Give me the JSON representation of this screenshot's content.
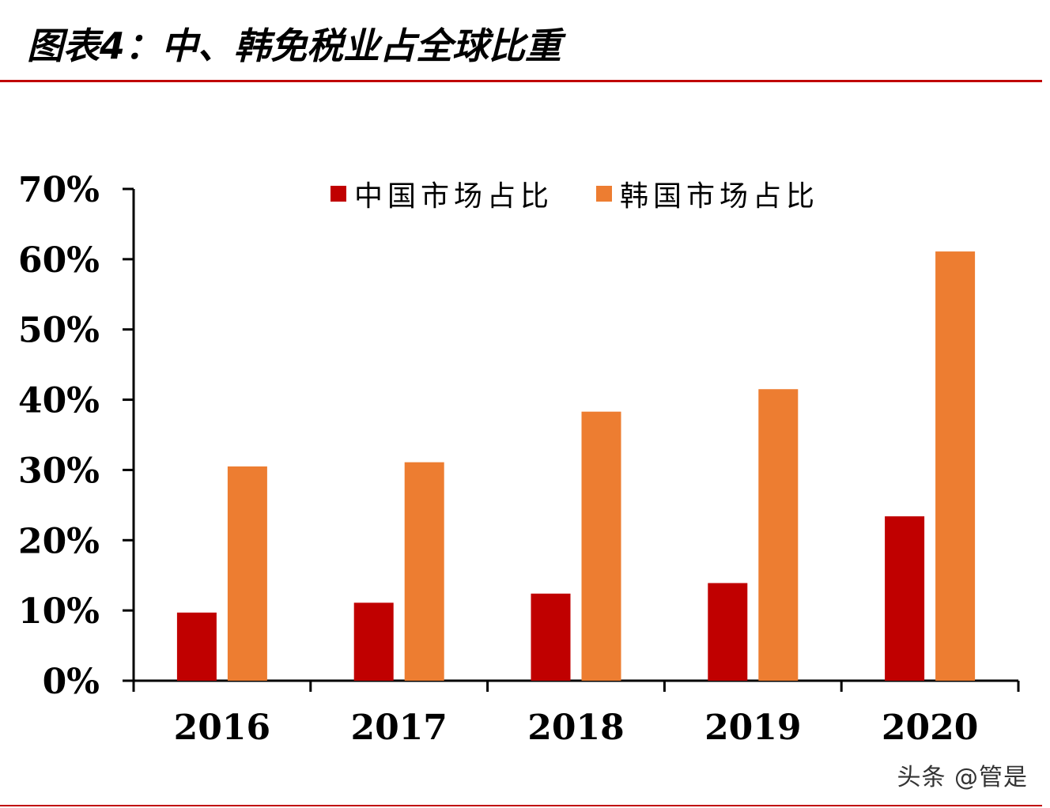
{
  "title": "图表4：中、韩免税业占全球比重",
  "watermark": "头条 @管是",
  "colors": {
    "accent": "#c00000",
    "china": "#c00000",
    "korea": "#ed7d31"
  },
  "chart_data": {
    "type": "bar",
    "categories": [
      "2016",
      "2017",
      "2018",
      "2019",
      "2020"
    ],
    "series": [
      {
        "name": "中国市场占比",
        "values": [
          9.7,
          11.1,
          12.4,
          13.9,
          23.4
        ],
        "color": "#c00000"
      },
      {
        "name": "韩国市场占比",
        "values": [
          30.5,
          31.1,
          38.3,
          41.5,
          61.1
        ],
        "color": "#ed7d31"
      }
    ],
    "yticks": [
      "0%",
      "10%",
      "20%",
      "30%",
      "40%",
      "50%",
      "60%",
      "70%"
    ],
    "ylim": [
      0,
      70
    ],
    "xlabel": "",
    "ylabel": "",
    "grid": false,
    "legend": "top-center"
  }
}
